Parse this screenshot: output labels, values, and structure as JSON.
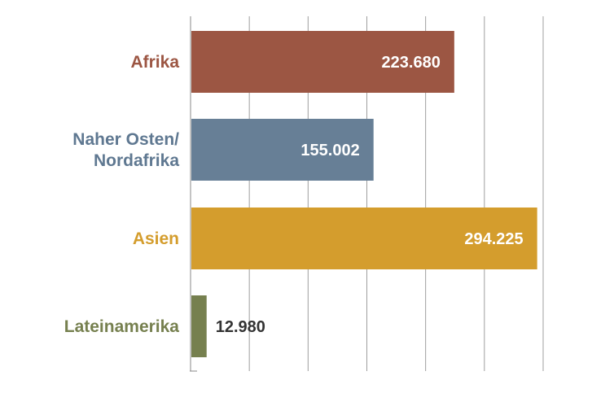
{
  "chart_data": {
    "type": "bar",
    "orientation": "horizontal",
    "title": "",
    "xlabel": "",
    "ylabel": "",
    "xlim": [
      0,
      300000
    ],
    "grid": true,
    "categories": [
      {
        "lines": [
          "Afrika"
        ],
        "value": 223680,
        "value_label": "223.680",
        "color": "#9C5643",
        "label_color": "#9C5643",
        "value_inside": true
      },
      {
        "lines": [
          "Naher Osten/",
          "Nordafrika"
        ],
        "value": 155002,
        "value_label": "155.002",
        "color": "#677F96",
        "label_color": "#5F7891",
        "value_inside": true
      },
      {
        "lines": [
          "Asien"
        ],
        "value": 294225,
        "value_label": "294.225",
        "color": "#D49D2D",
        "label_color": "#D49D2D",
        "value_inside": true
      },
      {
        "lines": [
          "Lateinamerika"
        ],
        "value": 12980,
        "value_label": "12.980",
        "color": "#76804F",
        "label_color": "#76804F",
        "value_inside": false
      }
    ]
  }
}
